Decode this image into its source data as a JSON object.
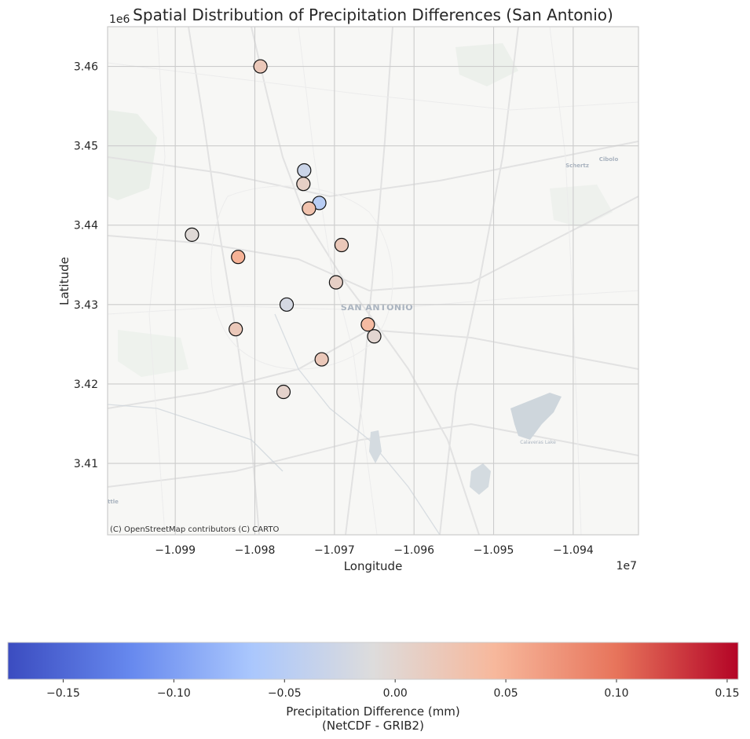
{
  "chart_data": {
    "type": "scatter",
    "title": "Spatial Distribution of Precipitation Differences (San Antonio)",
    "xlabel": "Longitude",
    "ylabel": "Latitude",
    "x_offset_label": "1e7",
    "y_offset_label": "1e6",
    "xlim": [
      -1.09985,
      -1.09318
    ],
    "ylim": [
      3.401,
      3.465
    ],
    "xticks": [
      -1.099,
      -1.098,
      -1.097,
      -1.096,
      -1.095,
      -1.094
    ],
    "xtick_labels": [
      "−1.099",
      "−1.098",
      "−1.097",
      "−1.096",
      "−1.095",
      "−1.094"
    ],
    "yticks": [
      3.41,
      3.42,
      3.43,
      3.44,
      3.45,
      3.46
    ],
    "ytick_labels": [
      "3.41",
      "3.42",
      "3.43",
      "3.44",
      "3.45",
      "3.46"
    ],
    "grid": true,
    "basemap_labels": {
      "city": "SAN ANTONIO",
      "towns": [
        "Schertz",
        "Cibolo"
      ],
      "lake": "Calaveras Lake",
      "partial": "ttle"
    },
    "attribution": "(C) OpenStreetMap contributors (C) CARTO",
    "points": [
      {
        "x": -1.09793,
        "y": 3.46,
        "value": 0.02
      },
      {
        "x": -1.09738,
        "y": 3.4469,
        "value": -0.03
      },
      {
        "x": -1.09739,
        "y": 3.4452,
        "value": 0.01
      },
      {
        "x": -1.09719,
        "y": 3.4428,
        "value": -0.05
      },
      {
        "x": -1.09732,
        "y": 3.4421,
        "value": 0.03
      },
      {
        "x": -1.09879,
        "y": 3.4388,
        "value": -0.005
      },
      {
        "x": -1.09821,
        "y": 3.436,
        "value": 0.05
      },
      {
        "x": -1.09691,
        "y": 3.4375,
        "value": 0.02
      },
      {
        "x": -1.09698,
        "y": 3.4328,
        "value": 0.01
      },
      {
        "x": -1.0976,
        "y": 3.43,
        "value": -0.02
      },
      {
        "x": -1.09824,
        "y": 3.4269,
        "value": 0.02
      },
      {
        "x": -1.09658,
        "y": 3.4275,
        "value": 0.04
      },
      {
        "x": -1.0965,
        "y": 3.426,
        "value": 0.0
      },
      {
        "x": -1.09716,
        "y": 3.4231,
        "value": 0.02
      },
      {
        "x": -1.09764,
        "y": 3.419,
        "value": 0.005
      }
    ],
    "colorbar": {
      "cmap": "coolwarm",
      "range": [
        -0.175,
        0.155
      ],
      "ticks": [
        -0.15,
        -0.1,
        -0.05,
        0.0,
        0.05,
        0.1,
        0.15
      ],
      "tick_labels": [
        "−0.15",
        "−0.10",
        "−0.05",
        "0.00",
        "0.05",
        "0.10",
        "0.15"
      ],
      "label_line1": "Precipitation Difference (mm)",
      "label_line2": "(NetCDF - GRIB2)",
      "colors": [
        "#3b4cc0",
        "#6688ee",
        "#aac7fd",
        "#dddcdc",
        "#f7b89c",
        "#e7745b",
        "#b40426"
      ]
    }
  }
}
